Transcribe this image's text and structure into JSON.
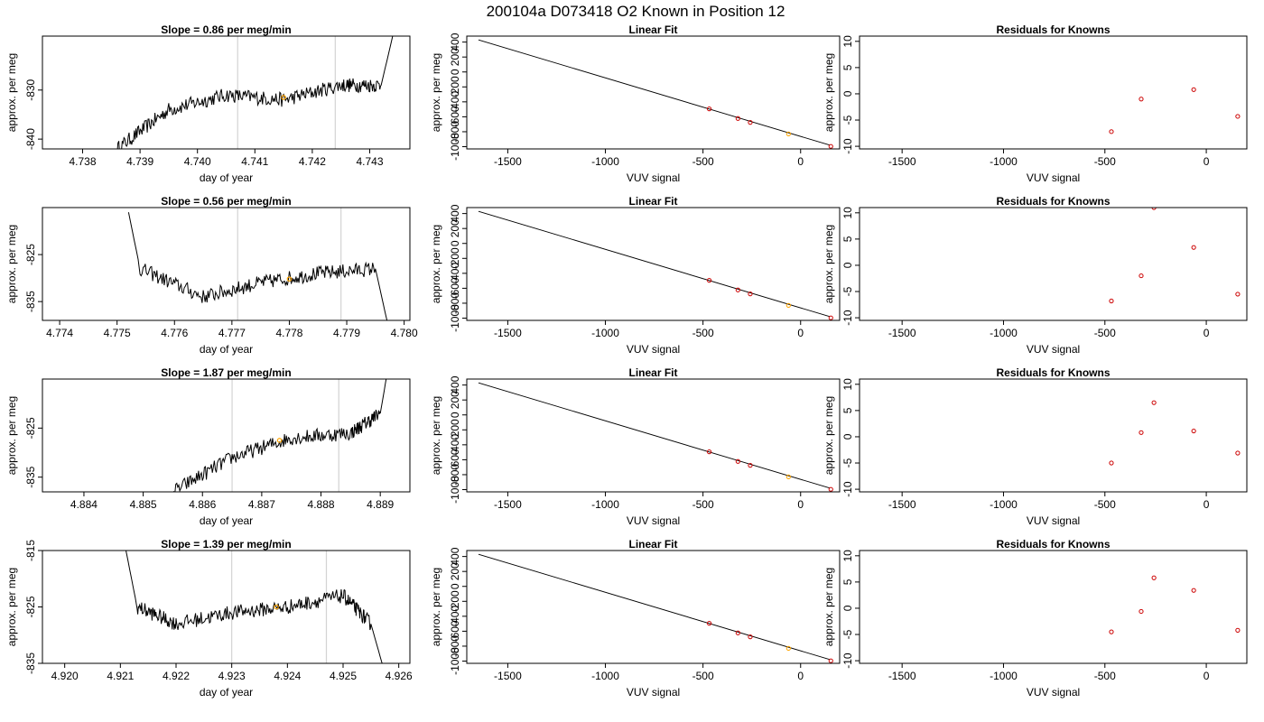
{
  "title": "200104a     D073418   O2 Known in Position  12",
  "chart_data": [
    {
      "type": "line",
      "role": "trace",
      "row": 0,
      "title": "Slope =  0.86  per meg/min",
      "xlabel": "day of year",
      "ylabel": "approx. per meg",
      "xlim": [
        4.7373,
        4.7437
      ],
      "ylim": [
        -842,
        -819
      ],
      "xticks": [
        "4.738",
        "4.739",
        "4.740",
        "4.741",
        "4.742",
        "4.743"
      ],
      "xtick_values": [
        4.738,
        4.739,
        4.74,
        4.741,
        4.742,
        4.743
      ],
      "yticks": [
        "-840",
        "-830"
      ],
      "ytick_values": [
        -840,
        -830
      ],
      "vlines": [
        4.7407,
        4.7424
      ],
      "trace_x": [
        4.7386,
        4.7395,
        4.7405,
        4.7415,
        4.7425,
        4.7432,
        4.7434
      ],
      "trace_y": [
        -842,
        -834,
        -831,
        -832,
        -829,
        -829,
        -819
      ],
      "marker": {
        "x": 4.7415,
        "y": -831.5
      }
    },
    {
      "type": "scatter",
      "role": "fit",
      "row": 0,
      "title": "Linear Fit",
      "xlabel": "VUV signal",
      "ylabel": "approx. per meg",
      "xlim": [
        -1710,
        200
      ],
      "ylim": [
        -1030,
        480
      ],
      "xticks": [
        "-1500",
        "-1000",
        "-500",
        "0"
      ],
      "xtick_values": [
        -1500,
        -1000,
        -500,
        0
      ],
      "yticks": [
        "-1000",
        "-800",
        "-600",
        "-400",
        "-200",
        "0",
        "200",
        "400"
      ],
      "ytick_values": [
        -1000,
        -800,
        -600,
        -400,
        -200,
        0,
        200,
        400
      ],
      "fit_line": {
        "x": [
          -1650,
          150
        ],
        "y": [
          430,
          -980
        ]
      },
      "points": [
        {
          "x": -468,
          "y": -494
        },
        {
          "x": -321,
          "y": -622
        },
        {
          "x": -258,
          "y": -675
        },
        {
          "x": -62,
          "y": -829
        },
        {
          "x": 155,
          "y": -996
        }
      ],
      "highlight_index": 3
    },
    {
      "type": "scatter",
      "role": "residuals",
      "row": 0,
      "title": "Residuals for Knowns",
      "xlabel": "VUV signal",
      "ylabel": "approx. per meg",
      "xlim": [
        -1710,
        200
      ],
      "ylim": [
        -10.5,
        11
      ],
      "xticks": [
        "-1500",
        "-1000",
        "-500",
        "0"
      ],
      "xtick_values": [
        -1500,
        -1000,
        -500,
        0
      ],
      "yticks": [
        "-10",
        "-5",
        "0",
        "5",
        "10"
      ],
      "ytick_values": [
        -10,
        -5,
        0,
        5,
        10
      ],
      "points": [
        {
          "x": -468,
          "y": -7.2
        },
        {
          "x": -321,
          "y": -1.0
        },
        {
          "x": -62,
          "y": 0.8
        },
        {
          "x": 155,
          "y": -4.3
        }
      ]
    },
    {
      "type": "line",
      "role": "trace",
      "row": 1,
      "title": "Slope =  0.56  per meg/min",
      "xlabel": "day of year",
      "ylabel": "approx. per meg",
      "xlim": [
        4.7737,
        4.7801
      ],
      "ylim": [
        -839,
        -815
      ],
      "xticks": [
        "4.774",
        "4.775",
        "4.776",
        "4.777",
        "4.778",
        "4.779",
        "4.780"
      ],
      "xtick_values": [
        4.774,
        4.775,
        4.776,
        4.777,
        4.778,
        4.779,
        4.78
      ],
      "yticks": [
        "-835",
        "-825"
      ],
      "ytick_values": [
        -835,
        -825
      ],
      "vlines": [
        4.7771,
        4.7789
      ],
      "trace_x": [
        4.7752,
        4.7754,
        4.7765,
        4.7775,
        4.7785,
        4.7795,
        4.7797
      ],
      "trace_y": [
        -816,
        -828,
        -834,
        -831,
        -829,
        -828,
        -839
      ],
      "marker": {
        "x": 4.778,
        "y": -830.2
      }
    },
    {
      "type": "scatter",
      "role": "fit",
      "row": 1,
      "title": "Linear Fit",
      "xlabel": "VUV signal",
      "ylabel": "approx. per meg",
      "xlim": [
        -1710,
        200
      ],
      "ylim": [
        -1030,
        480
      ],
      "xticks": [
        "-1500",
        "-1000",
        "-500",
        "0"
      ],
      "xtick_values": [
        -1500,
        -1000,
        -500,
        0
      ],
      "yticks": [
        "-1000",
        "-800",
        "-600",
        "-400",
        "-200",
        "0",
        "200",
        "400"
      ],
      "ytick_values": [
        -1000,
        -800,
        -600,
        -400,
        -200,
        0,
        200,
        400
      ],
      "fit_line": {
        "x": [
          -1650,
          150
        ],
        "y": [
          430,
          -980
        ]
      },
      "points": [
        {
          "x": -468,
          "y": -494
        },
        {
          "x": -321,
          "y": -622
        },
        {
          "x": -258,
          "y": -675
        },
        {
          "x": -62,
          "y": -829
        },
        {
          "x": 155,
          "y": -996
        }
      ],
      "highlight_index": 3
    },
    {
      "type": "scatter",
      "role": "residuals",
      "row": 1,
      "title": "Residuals for Knowns",
      "xlabel": "VUV signal",
      "ylabel": "approx. per meg",
      "xlim": [
        -1710,
        200
      ],
      "ylim": [
        -10.5,
        11
      ],
      "xticks": [
        "-1500",
        "-1000",
        "-500",
        "0"
      ],
      "xtick_values": [
        -1500,
        -1000,
        -500,
        0
      ],
      "yticks": [
        "-10",
        "-5",
        "0",
        "5",
        "10"
      ],
      "ytick_values": [
        -10,
        -5,
        0,
        5,
        10
      ],
      "points": [
        {
          "x": -468,
          "y": -6.8
        },
        {
          "x": -321,
          "y": -2.0
        },
        {
          "x": -258,
          "y": 11.0
        },
        {
          "x": -62,
          "y": 3.4
        },
        {
          "x": 155,
          "y": -5.5
        }
      ]
    },
    {
      "type": "line",
      "role": "trace",
      "row": 2,
      "title": "Slope =  1.87  per meg/min",
      "xlabel": "day of year",
      "ylabel": "approx. per meg",
      "xlim": [
        4.8833,
        4.8895
      ],
      "ylim": [
        -838,
        -815
      ],
      "xticks": [
        "4.884",
        "4.885",
        "4.886",
        "4.887",
        "4.888",
        "4.889"
      ],
      "xtick_values": [
        4.884,
        4.885,
        4.886,
        4.887,
        4.888,
        4.889
      ],
      "yticks": [
        "-835",
        "-825"
      ],
      "ytick_values": [
        -835,
        -825
      ],
      "vlines": [
        4.8865,
        4.8883
      ],
      "trace_x": [
        4.8855,
        4.8865,
        4.8875,
        4.8885,
        4.889,
        4.8891
      ],
      "trace_y": [
        -838,
        -831,
        -827,
        -826,
        -822,
        -815
      ],
      "marker": {
        "x": 4.8873,
        "y": -827.5
      }
    },
    {
      "type": "scatter",
      "role": "fit",
      "row": 2,
      "title": "Linear Fit",
      "xlabel": "VUV signal",
      "ylabel": "approx. per meg",
      "xlim": [
        -1710,
        200
      ],
      "ylim": [
        -1030,
        480
      ],
      "xticks": [
        "-1500",
        "-1000",
        "-500",
        "0"
      ],
      "xtick_values": [
        -1500,
        -1000,
        -500,
        0
      ],
      "yticks": [
        "-1000",
        "-800",
        "-600",
        "-400",
        "-200",
        "0",
        "200",
        "400"
      ],
      "ytick_values": [
        -1000,
        -800,
        -600,
        -400,
        -200,
        0,
        200,
        400
      ],
      "fit_line": {
        "x": [
          -1650,
          150
        ],
        "y": [
          430,
          -980
        ]
      },
      "points": [
        {
          "x": -468,
          "y": -494
        },
        {
          "x": -321,
          "y": -622
        },
        {
          "x": -258,
          "y": -675
        },
        {
          "x": -62,
          "y": -829
        },
        {
          "x": 155,
          "y": -996
        }
      ],
      "highlight_index": 3
    },
    {
      "type": "scatter",
      "role": "residuals",
      "row": 2,
      "title": "Residuals for Knowns",
      "xlabel": "VUV signal",
      "ylabel": "approx. per meg",
      "xlim": [
        -1710,
        200
      ],
      "ylim": [
        -10.5,
        11
      ],
      "xticks": [
        "-1500",
        "-1000",
        "-500",
        "0"
      ],
      "xtick_values": [
        -1500,
        -1000,
        -500,
        0
      ],
      "yticks": [
        "-10",
        "-5",
        "0",
        "5",
        "10"
      ],
      "ytick_values": [
        -10,
        -5,
        0,
        5,
        10
      ],
      "points": [
        {
          "x": -468,
          "y": -5.0
        },
        {
          "x": -321,
          "y": 0.8
        },
        {
          "x": -258,
          "y": 6.5
        },
        {
          "x": -62,
          "y": 1.1
        },
        {
          "x": 155,
          "y": -3.1
        }
      ]
    },
    {
      "type": "line",
      "role": "trace",
      "row": 3,
      "title": "Slope =  1.39  per meg/min",
      "xlabel": "day of year",
      "ylabel": "approx. per meg",
      "xlim": [
        4.9196,
        4.9262
      ],
      "ylim": [
        -835,
        -815
      ],
      "xticks": [
        "4.920",
        "4.921",
        "4.922",
        "4.923",
        "4.924",
        "4.925",
        "4.926"
      ],
      "xtick_values": [
        4.92,
        4.921,
        4.922,
        4.923,
        4.924,
        4.925,
        4.926
      ],
      "yticks": [
        "-835",
        "-825",
        "-815"
      ],
      "ytick_values": [
        -835,
        -825,
        -815
      ],
      "vlines": [
        4.923,
        4.9247
      ],
      "trace_x": [
        4.9211,
        4.9213,
        4.922,
        4.923,
        4.924,
        4.925,
        4.9255,
        4.9257
      ],
      "trace_y": [
        -815,
        -825,
        -828,
        -826,
        -825,
        -823,
        -828,
        -835
      ],
      "marker": {
        "x": 4.9238,
        "y": -825.0
      }
    },
    {
      "type": "scatter",
      "role": "fit",
      "row": 3,
      "title": "Linear Fit",
      "xlabel": "VUV signal",
      "ylabel": "approx. per meg",
      "xlim": [
        -1710,
        200
      ],
      "ylim": [
        -1030,
        480
      ],
      "xticks": [
        "-1500",
        "-1000",
        "-500",
        "0"
      ],
      "xtick_values": [
        -1500,
        -1000,
        -500,
        0
      ],
      "yticks": [
        "-1000",
        "-800",
        "-600",
        "-400",
        "-200",
        "0",
        "200",
        "400"
      ],
      "ytick_values": [
        -1000,
        -800,
        -600,
        -400,
        -200,
        0,
        200,
        400
      ],
      "fit_line": {
        "x": [
          -1650,
          150
        ],
        "y": [
          430,
          -980
        ]
      },
      "points": [
        {
          "x": -468,
          "y": -494
        },
        {
          "x": -321,
          "y": -622
        },
        {
          "x": -258,
          "y": -675
        },
        {
          "x": -62,
          "y": -829
        },
        {
          "x": 155,
          "y": -996
        }
      ],
      "highlight_index": 3
    },
    {
      "type": "scatter",
      "role": "residuals",
      "row": 3,
      "title": "Residuals for Knowns",
      "xlabel": "VUV signal",
      "ylabel": "approx. per meg",
      "xlim": [
        -1710,
        200
      ],
      "ylim": [
        -10.5,
        11
      ],
      "xticks": [
        "-1500",
        "-1000",
        "-500",
        "0"
      ],
      "xtick_values": [
        -1500,
        -1000,
        -500,
        0
      ],
      "yticks": [
        "-10",
        "-5",
        "0",
        "5",
        "10"
      ],
      "ytick_values": [
        -10,
        -5,
        0,
        5,
        10
      ],
      "points": [
        {
          "x": -468,
          "y": -4.5
        },
        {
          "x": -321,
          "y": -0.6
        },
        {
          "x": -258,
          "y": 5.8
        },
        {
          "x": -62,
          "y": 3.4
        },
        {
          "x": 155,
          "y": -4.2
        }
      ]
    }
  ],
  "colors": {
    "line": "#000000",
    "gridline": "#d3d3d3",
    "point": "#cc0000",
    "highlight": "#ffa500"
  }
}
